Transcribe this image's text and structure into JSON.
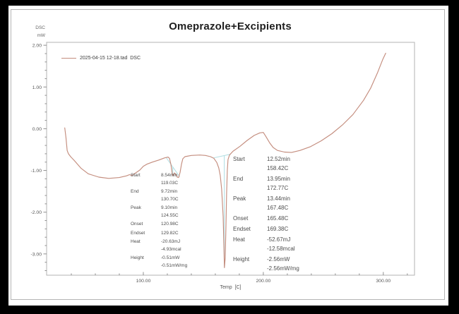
{
  "title": "Omeprazole+Excipients",
  "y_unit": {
    "line1": "DSC",
    "line2": "mW"
  },
  "legend": {
    "label": "2025-04-15 12-18.tad  DSC",
    "line_color": "#c48d7e"
  },
  "axis": {
    "x_title": "Temp  [C]"
  },
  "annotations": {
    "peak1": {
      "rows": [
        {
          "label": "Start",
          "v1": "8.54min",
          "v2": "119.03C"
        },
        {
          "label": "End",
          "v1": "9.72min",
          "v2": "130.70C"
        },
        {
          "label": "Peak",
          "v1": "9.10min",
          "v2": "124.55C"
        },
        {
          "label": "Onset",
          "v1": "120.98C"
        },
        {
          "label": "Endset",
          "v1": "129.82C"
        },
        {
          "label": "Heat",
          "v1": "-20.63mJ",
          "v2": "-4.93mcal"
        },
        {
          "label": "Height",
          "v1": "-0.51mW",
          "v2": "-0.51mW/mg"
        }
      ]
    },
    "peak2": {
      "rows": [
        {
          "label": "Start",
          "v1": "12.52min",
          "v2": "158.42C"
        },
        {
          "label": "End",
          "v1": "13.95min",
          "v2": "172.77C"
        },
        {
          "label": "Peak",
          "v1": "13.44min",
          "v2": "167.48C"
        },
        {
          "label": "Onset",
          "v1": "165.48C"
        },
        {
          "label": "Endset",
          "v1": "169.38C"
        },
        {
          "label": "Heat",
          "v1": "-52.67mJ",
          "v2": "-12.58mcal"
        },
        {
          "label": "Height",
          "v1": "-2.56mW",
          "v2": "-2.56mW/mg"
        }
      ]
    }
  },
  "chart_data": {
    "type": "line",
    "title": "Omeprazole+Excipients",
    "xlabel": "Temp [C]",
    "ylabel": "DSC mW",
    "xlim": [
      19.4,
      326
    ],
    "ylim": [
      -3.51,
      2.07
    ],
    "grid": false,
    "legend_position": "top-left-inside",
    "frame_color": "#b3b3b3",
    "axis_color": "#8f8f8f",
    "label_color": "#555555",
    "baseline_color": "#aedde2",
    "x_major_ticks": [
      {
        "value": 100,
        "label": "100.00"
      },
      {
        "value": 200,
        "label": "200.00"
      },
      {
        "value": 300,
        "label": "300.00"
      }
    ],
    "x_minor_step": 20,
    "y_major_ticks": [
      {
        "value": 2,
        "label": "2.00"
      },
      {
        "value": 1,
        "label": "1.00"
      },
      {
        "value": 0,
        "label": "0.00"
      },
      {
        "value": -1,
        "label": "-1.00"
      },
      {
        "value": -2,
        "label": "-2.00"
      },
      {
        "value": -3,
        "label": "-3.00"
      }
    ],
    "y_minor_step": 0.2,
    "series": [
      {
        "name": "2025-04-15 12-18.tad DSC",
        "color": "#c48d7e",
        "points": [
          [
            34.5,
            0.02
          ],
          [
            35.5,
            -0.21
          ],
          [
            36.5,
            -0.52
          ],
          [
            37.6,
            -0.6
          ],
          [
            39.4,
            -0.67
          ],
          [
            42.4,
            -0.76
          ],
          [
            48.2,
            -0.95
          ],
          [
            54.1,
            -1.08
          ],
          [
            62.9,
            -1.16
          ],
          [
            71.2,
            -1.19
          ],
          [
            80.0,
            -1.17
          ],
          [
            86.0,
            -1.13
          ],
          [
            88.5,
            -1.1
          ],
          [
            90.5,
            -1.12
          ],
          [
            94.1,
            -1.05
          ],
          [
            97.1,
            -0.99
          ],
          [
            100.0,
            -0.9
          ],
          [
            102.9,
            -0.85
          ],
          [
            107.6,
            -0.8
          ],
          [
            112.9,
            -0.75
          ],
          [
            117.6,
            -0.7
          ],
          [
            120.6,
            -0.68
          ],
          [
            121.8,
            -0.71
          ],
          [
            123.0,
            -0.85
          ],
          [
            124.1,
            -1.08
          ],
          [
            124.7,
            -1.13
          ],
          [
            125.9,
            -1.06
          ],
          [
            127.1,
            -1.09
          ],
          [
            128.2,
            -1.16
          ],
          [
            129.4,
            -1.17
          ],
          [
            130.6,
            -1.05
          ],
          [
            131.8,
            -0.85
          ],
          [
            132.9,
            -0.72
          ],
          [
            134.7,
            -0.67
          ],
          [
            140.0,
            -0.64
          ],
          [
            147.1,
            -0.63
          ],
          [
            151.8,
            -0.64
          ],
          [
            155.9,
            -0.67
          ],
          [
            158.8,
            -0.71
          ],
          [
            161.2,
            -0.81
          ],
          [
            162.9,
            -0.94
          ],
          [
            164.1,
            -1.12
          ],
          [
            165.3,
            -1.45
          ],
          [
            166.5,
            -2.1
          ],
          [
            167.1,
            -2.75
          ],
          [
            167.6,
            -3.33
          ],
          [
            168.2,
            -3.1
          ],
          [
            168.8,
            -2.4
          ],
          [
            169.4,
            -1.55
          ],
          [
            170.0,
            -1.0
          ],
          [
            170.6,
            -0.74
          ],
          [
            171.8,
            -0.63
          ],
          [
            174.7,
            -0.54
          ],
          [
            180.6,
            -0.42
          ],
          [
            186.5,
            -0.28
          ],
          [
            192.4,
            -0.16
          ],
          [
            197.1,
            -0.1
          ],
          [
            200.0,
            -0.09
          ],
          [
            202.4,
            -0.2
          ],
          [
            205.3,
            -0.34
          ],
          [
            208.2,
            -0.45
          ],
          [
            211.8,
            -0.52
          ],
          [
            217.6,
            -0.56
          ],
          [
            223.5,
            -0.57
          ],
          [
            230.6,
            -0.52
          ],
          [
            239.4,
            -0.43
          ],
          [
            248.2,
            -0.29
          ],
          [
            257.1,
            -0.12
          ],
          [
            265.9,
            0.09
          ],
          [
            274.7,
            0.34
          ],
          [
            283.5,
            0.68
          ],
          [
            289.4,
            0.97
          ],
          [
            295.3,
            1.35
          ],
          [
            299.4,
            1.65
          ],
          [
            302.0,
            1.81
          ]
        ]
      }
    ],
    "peak_lines": [
      [
        [
          119.03,
          -0.69
        ],
        [
          130.3,
          -1.15
        ]
      ],
      [
        [
          124.55,
          -0.92
        ],
        [
          124.55,
          -1.12
        ]
      ],
      [
        [
          158.42,
          -0.7
        ],
        [
          172.77,
          -0.61
        ]
      ],
      [
        [
          167.48,
          -0.65
        ],
        [
          167.48,
          -3.32
        ]
      ]
    ]
  }
}
